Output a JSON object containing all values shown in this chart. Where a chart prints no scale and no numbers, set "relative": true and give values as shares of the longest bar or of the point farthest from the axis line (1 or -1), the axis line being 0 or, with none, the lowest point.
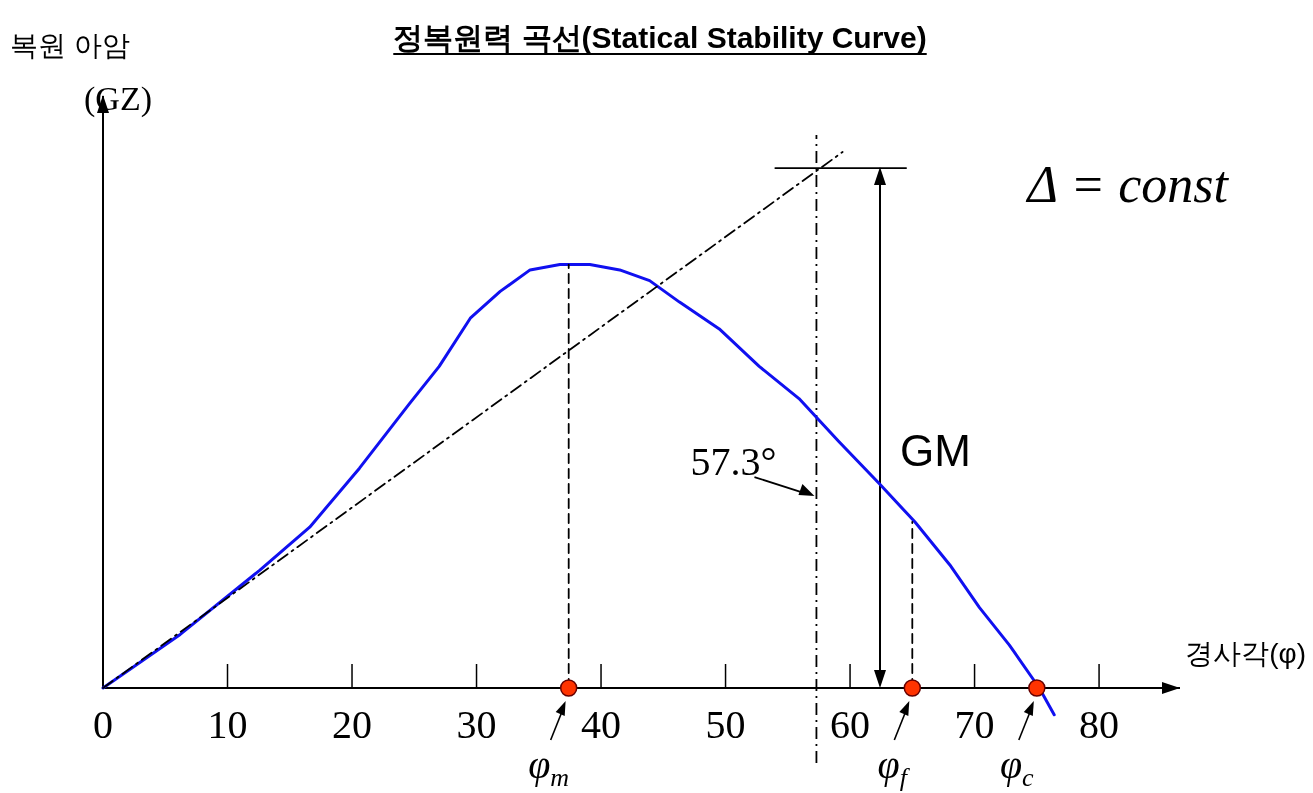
{
  "chart_data": {
    "type": "line",
    "title": "정복원력 곡선(Statical Stability Curve)",
    "xlabel": "경사각(φ)",
    "ylabel": "복원 아암\n(GZ)",
    "relative": true,
    "xlim": [
      0,
      86.5
    ],
    "xticks": [
      0,
      10,
      20,
      30,
      40,
      50,
      60,
      70,
      80
    ],
    "series": [
      {
        "color": "#1010f0",
        "line_style": "solid",
        "x": [
          0,
          6.2,
          12.6,
          16.6,
          20.6,
          24.6,
          27.0,
          29.5,
          31.9,
          34.3,
          36.7,
          39.1,
          41.5,
          43.9,
          46.3,
          49.5,
          52.7,
          55.9,
          59.1,
          62.4,
          65.2,
          68.0,
          70.4,
          72.8,
          75.2,
          76.4
        ],
        "values": [
          0,
          0.1,
          0.22,
          0.3,
          0.41,
          0.53,
          0.6,
          0.69,
          0.74,
          0.78,
          0.79,
          0.79,
          0.78,
          0.76,
          0.72,
          0.67,
          0.6,
          0.54,
          0.46,
          0.38,
          0.31,
          0.23,
          0.15,
          0.08,
          0.0,
          -0.05
        ]
      },
      {
        "color": "#000000",
        "line_style": "dashdot",
        "x": [
          0,
          59.4
        ],
        "values": [
          0,
          1.0
        ]
      },
      {
        "color": "#000000",
        "line_style": "dashed",
        "x": [
          37.4,
          37.4
        ],
        "values": [
          0,
          0.79
        ]
      },
      {
        "color": "#000000",
        "line_style": "dashed",
        "x": [
          65.0,
          65.0
        ],
        "values": [
          0,
          0.31
        ]
      },
      {
        "color": "#000000",
        "line_style": "solid",
        "x": [
          54.0,
          64.5
        ],
        "values": [
          0.97,
          0.97
        ]
      },
      {
        "type": "scatter",
        "color": "#ff3300",
        "marker": "circle",
        "x": [
          37.4,
          65.0,
          75.0
        ],
        "values": [
          0,
          0,
          0
        ]
      }
    ],
    "ref_lines": [
      {
        "axis": "x",
        "value": 57.3,
        "label": "57.3°",
        "line_style": "dashdot",
        "color": "#000000"
      }
    ],
    "annotations": [
      {
        "text": "φ$_{m}$",
        "x": 37.4,
        "y": 0
      },
      {
        "text": "φ$_{f}$",
        "x": 65.0,
        "y": 0
      },
      {
        "text": "φ$_{c}$",
        "x": 75.0,
        "y": 0
      },
      "GM",
      "Δ = const"
    ]
  }
}
